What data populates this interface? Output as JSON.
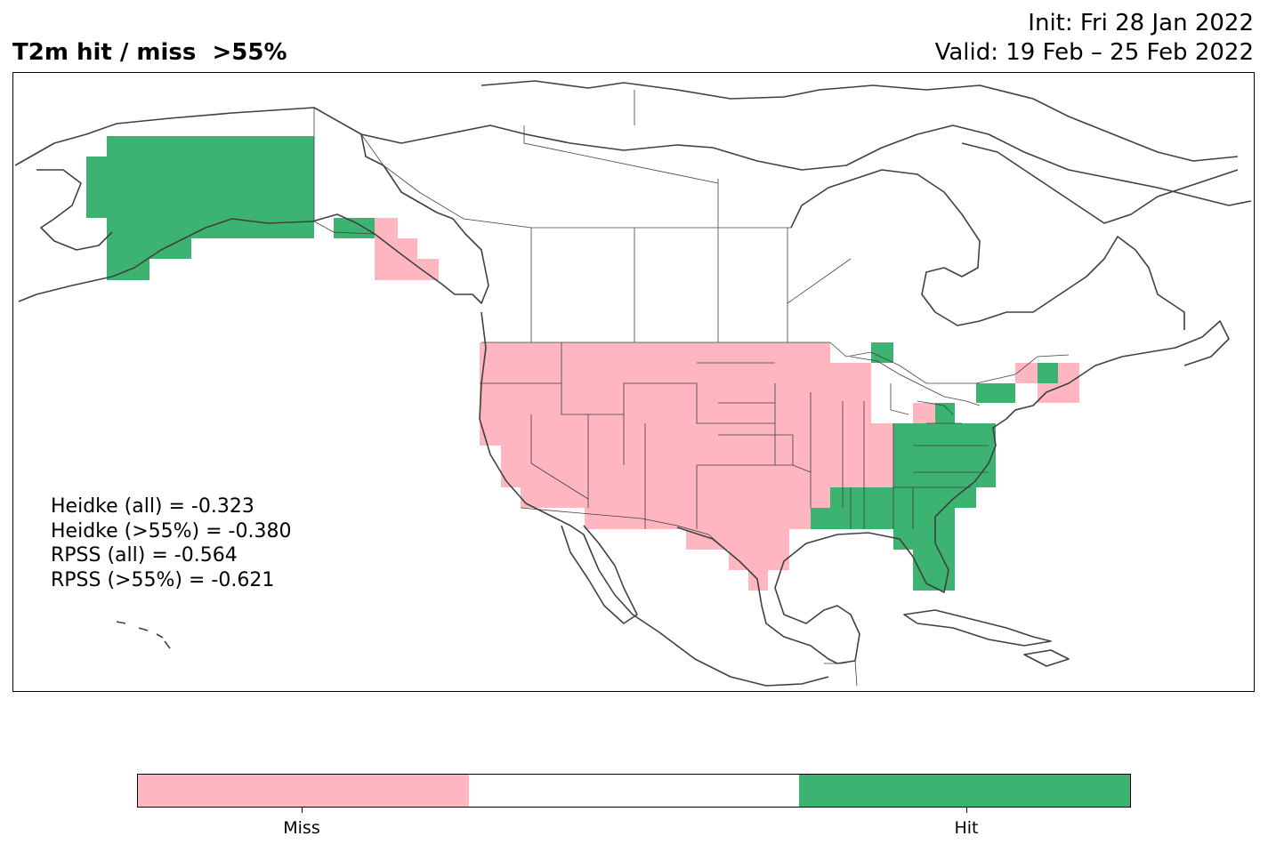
{
  "title": "T2m hit / miss  >55%",
  "init_line": "Init: Fri 28 Jan 2022",
  "valid_line": "Valid: 19 Feb – 25 Feb 2022",
  "stats": [
    "Heidke (all) = -0.323",
    "Heidke (>55%) = -0.380",
    "RPSS (all) = -0.564",
    "RPSS (>55%) = -0.621"
  ],
  "legend": {
    "categories": [
      "Miss",
      "",
      "Hit"
    ],
    "tick_labels": [
      "Miss",
      "Hit"
    ]
  },
  "colors": {
    "miss": "#ffb6c1",
    "neutral": "#ffffff",
    "hit": "#3cb371",
    "coastline": "#404040",
    "borders": "#404040"
  }
}
